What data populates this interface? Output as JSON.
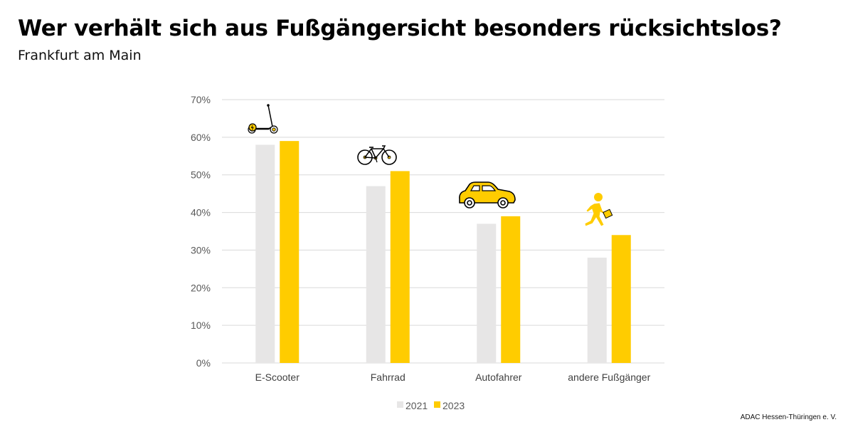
{
  "header": {
    "title": "Wer verhält sich aus Fußgängersicht  besonders rücksichtslos?",
    "subtitle": "Frankfurt am Main"
  },
  "footer": {
    "credit": "ADAC Hessen-Thüringen e. V."
  },
  "colors": {
    "series_2021": "#e7e6e6",
    "series_2023": "#ffcc00",
    "grid": "#d9d9d9"
  },
  "chart_data": {
    "type": "bar",
    "title": "Wer verhält sich aus Fußgängersicht  besonders rücksichtslos?",
    "subtitle": "Frankfurt am Main",
    "xlabel": "",
    "ylabel": "",
    "categories": [
      "E-Scooter",
      "Fahrrad",
      "Autofahrer",
      "andere Fußgänger"
    ],
    "category_icons": [
      "e-scooter-icon",
      "bicycle-icon",
      "car-icon",
      "pedestrian-icon"
    ],
    "series": [
      {
        "name": "2021",
        "values": [
          58,
          47,
          37,
          28
        ]
      },
      {
        "name": "2023",
        "values": [
          59,
          51,
          39,
          34
        ]
      }
    ],
    "ylim": [
      0,
      70
    ],
    "yticks": [
      0,
      10,
      20,
      30,
      40,
      50,
      60,
      70
    ],
    "ytick_labels": [
      "0%",
      "10%",
      "20%",
      "30%",
      "40%",
      "50%",
      "60%",
      "70%"
    ],
    "grid": true,
    "legend_position": "bottom"
  }
}
